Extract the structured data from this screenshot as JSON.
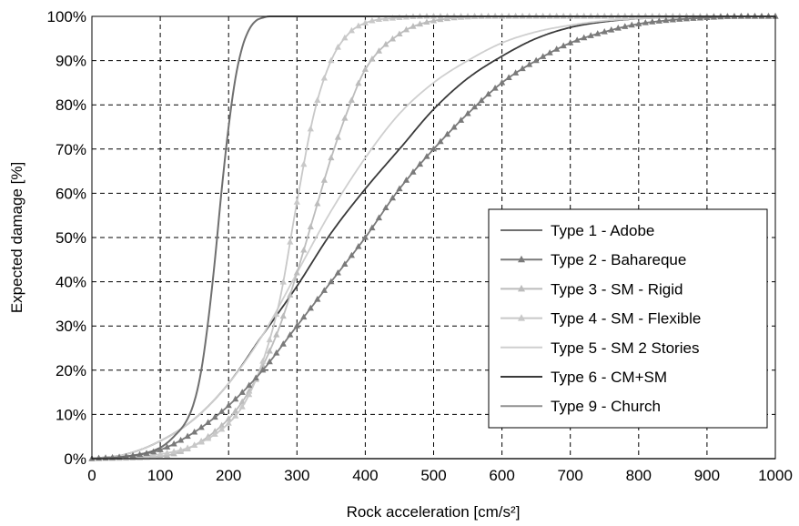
{
  "chart_data": {
    "type": "line",
    "title": "",
    "xlabel": "Rock acceleration [cm/s²]",
    "ylabel": "Expected damage [%]",
    "xlim": [
      0,
      1000
    ],
    "ylim": [
      0,
      100
    ],
    "x_ticks": [
      "0",
      "100",
      "200",
      "300",
      "400",
      "500",
      "600",
      "700",
      "800",
      "900",
      "1000"
    ],
    "y_ticks": [
      "0%",
      "10%",
      "20%",
      "30%",
      "40%",
      "50%",
      "60%",
      "70%",
      "80%",
      "90%",
      "100%"
    ],
    "grid": true,
    "legend_position": "right",
    "series": [
      {
        "name": "Type 1 - Adobe",
        "color": "#6f6f6f",
        "marker": "none",
        "x": [
          0,
          50,
          100,
          120,
          140,
          150,
          160,
          170,
          180,
          190,
          200,
          210,
          220,
          230,
          240,
          250,
          260,
          270,
          300,
          400,
          500,
          600,
          700,
          800,
          900,
          1000
        ],
        "y": [
          0,
          0.5,
          2.5,
          5,
          9,
          13,
          20,
          31,
          45,
          61,
          75,
          86,
          93,
          97,
          99,
          99.7,
          100,
          100,
          100,
          100,
          100,
          100,
          100,
          100,
          100,
          100
        ]
      },
      {
        "name": "Type 2 - Bahareque",
        "color": "#7a7a7a",
        "marker": "triangle",
        "x": [
          0,
          50,
          100,
          150,
          200,
          250,
          300,
          350,
          400,
          450,
          500,
          550,
          600,
          650,
          700,
          750,
          800,
          850,
          900,
          950,
          1000
        ],
        "y": [
          0,
          0.5,
          2,
          6,
          12,
          20,
          30,
          40,
          50,
          61,
          70,
          78,
          85,
          90,
          94,
          96.5,
          98.3,
          99.2,
          99.7,
          100,
          100
        ]
      },
      {
        "name": "Type 3 - SM - Rigid",
        "color": "#bcbcbc",
        "marker": "triangle",
        "x": [
          0,
          100,
          150,
          200,
          225,
          250,
          275,
          300,
          325,
          350,
          375,
          400,
          450,
          500,
          600,
          700,
          800,
          900,
          1000
        ],
        "y": [
          0,
          0.5,
          3,
          9,
          14,
          21,
          30,
          42,
          55,
          68,
          79,
          88,
          96,
          99,
          100,
          100,
          100,
          100,
          100
        ]
      },
      {
        "name": "Type 4 - SM - Flexible",
        "color": "#c8c8c8",
        "marker": "triangle",
        "x": [
          0,
          50,
          100,
          150,
          200,
          225,
          250,
          275,
          300,
          325,
          350,
          375,
          400,
          450,
          500,
          600,
          700,
          800,
          900,
          1000
        ],
        "y": [
          0,
          0.3,
          1,
          3,
          8,
          13,
          22,
          36,
          58,
          78,
          90,
          96,
          98.5,
          99.7,
          100,
          100,
          100,
          100,
          100,
          100
        ]
      },
      {
        "name": "Type 5 - SM 2 Stories",
        "color": "#cfcfcf",
        "marker": "none",
        "x": [
          0,
          50,
          100,
          150,
          200,
          250,
          300,
          350,
          400,
          450,
          500,
          550,
          600,
          650,
          700,
          750,
          800,
          850,
          900,
          1000
        ],
        "y": [
          0,
          1,
          4,
          9,
          17,
          28,
          42,
          56,
          68,
          78,
          85,
          90,
          94,
          96.5,
          98,
          99,
          99.5,
          99.8,
          100,
          100
        ]
      },
      {
        "name": "Type 6 - CM+SM",
        "color": "#3a3a3a",
        "marker": "none",
        "x": [
          0,
          50,
          100,
          150,
          200,
          250,
          300,
          350,
          400,
          450,
          500,
          550,
          600,
          650,
          700,
          750,
          800,
          850,
          900,
          1000
        ],
        "y": [
          0,
          1,
          4,
          9,
          17,
          28,
          39,
          51,
          61,
          70,
          79,
          86,
          91,
          95,
          97.5,
          98.8,
          99.5,
          99.8,
          100,
          100
        ]
      },
      {
        "name": "Type 9 - Church",
        "color": "#909090",
        "marker": "none",
        "x": [
          0,
          100,
          200,
          300,
          400,
          500,
          600,
          700,
          800,
          900,
          1000
        ],
        "y": [
          0,
          0,
          0,
          0,
          0,
          0,
          0,
          0,
          0,
          0,
          0
        ]
      }
    ]
  }
}
